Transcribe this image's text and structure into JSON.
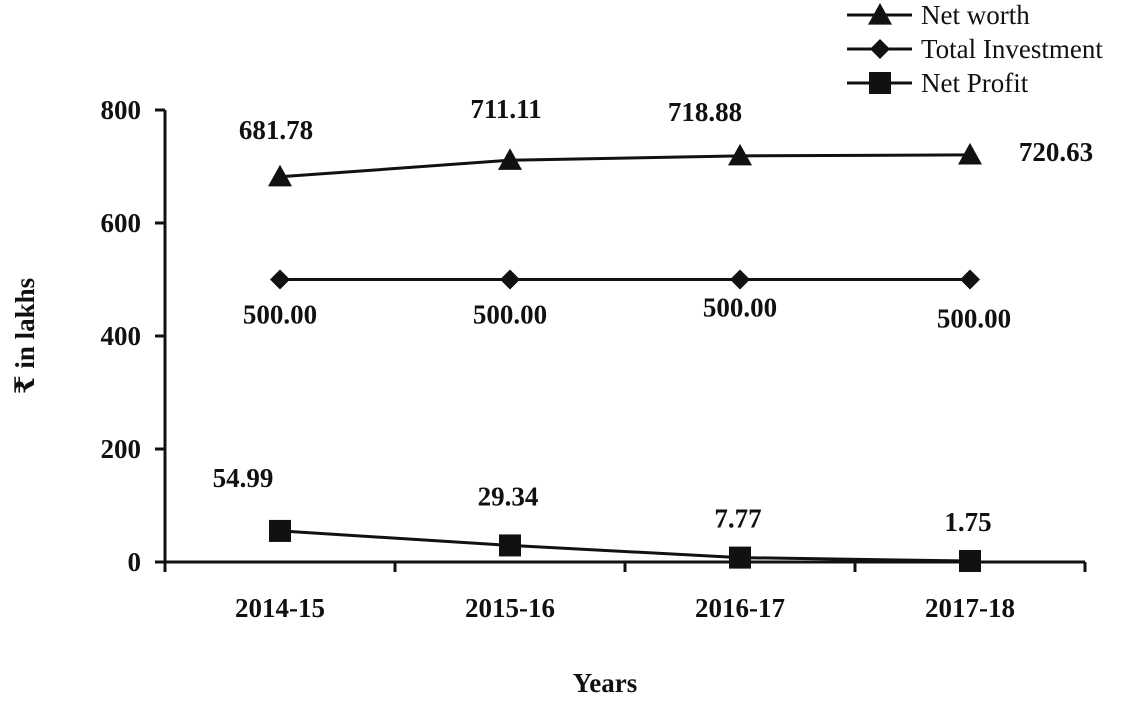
{
  "chart_data": {
    "type": "line",
    "categories": [
      "2014-15",
      "2015-16",
      "2016-17",
      "2017-18"
    ],
    "series": [
      {
        "name": "Net worth",
        "marker": "triangle",
        "values": [
          681.78,
          711.11,
          718.88,
          720.63
        ],
        "labels": [
          "681.78",
          "711.11",
          "718.88",
          "720.63"
        ]
      },
      {
        "name": "Total Investment",
        "marker": "diamond",
        "values": [
          500.0,
          500.0,
          500.0,
          500.0
        ],
        "labels": [
          "500.00",
          "500.00",
          "500.00",
          "500.00"
        ]
      },
      {
        "name": "Net Profit",
        "marker": "square",
        "values": [
          54.99,
          29.34,
          7.77,
          1.75
        ],
        "labels": [
          "54.99",
          "29.34",
          "7.77",
          "1.75"
        ]
      }
    ],
    "xlabel": "Years",
    "ylabel": "₹ in lakhs",
    "ylim": [
      0,
      800
    ],
    "yticks": [
      "0",
      "200",
      "400",
      "600",
      "800"
    ],
    "grid": false,
    "legend_position": "top-right",
    "line_color": "#111111"
  }
}
